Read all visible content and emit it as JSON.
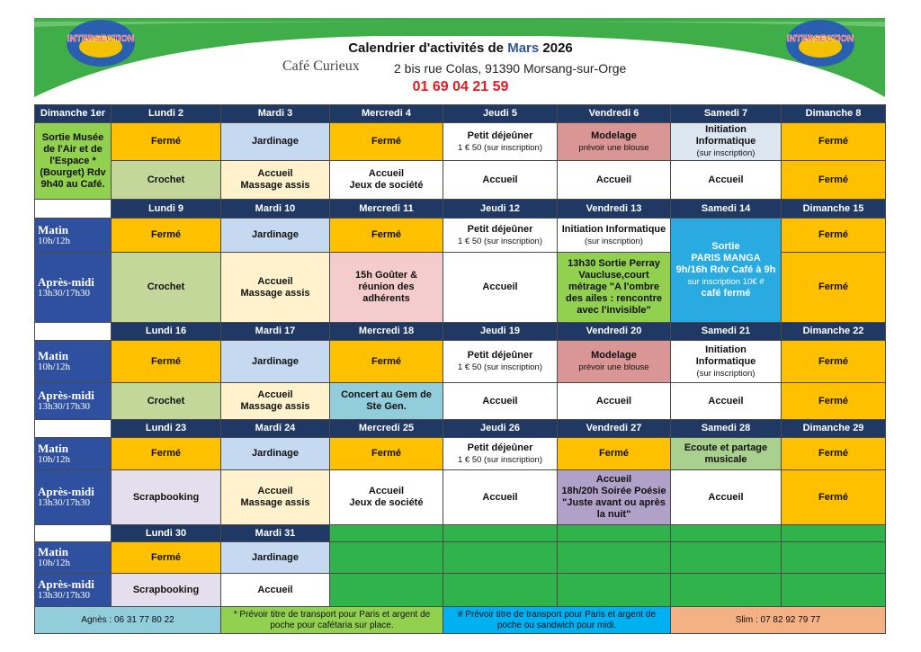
{
  "header": {
    "logo_text": "INTERSECTION",
    "title": [
      "Calendrier d'activités de",
      "Mars",
      "2026"
    ],
    "venue": "Café Curieux",
    "address": "2 bis rue Colas, 91390 Morsang-sur-Orge",
    "phone": "01 69 04 21 59"
  },
  "slots": [
    {
      "label": "Matin",
      "hours": "10h/12h"
    },
    {
      "label": "Après-midi",
      "hours": "13h30/17h30"
    }
  ],
  "weeks": [
    {
      "days": [
        "Dimanche 1er",
        "Lundi 2",
        "Mardi 3",
        "Mercredi 4",
        "Jeudi 5",
        "Vendredi 6",
        "Samedi 7",
        "Dimanche 8"
      ],
      "side_cell": {
        "lines": [
          "Sortie Musée de l'Air et de l'Espace *",
          "(Bourget) Rdv 9h40 au Café."
        ],
        "bg": "#92d050"
      },
      "rows": [
        [
          {
            "lines": [
              "Fermé"
            ],
            "bg": "#ffc000"
          },
          {
            "lines": [
              "Jardinage"
            ],
            "bg": "#c5d9f1"
          },
          {
            "lines": [
              "Fermé"
            ],
            "bg": "#ffc000"
          },
          {
            "lines": [
              "Petit déjeûner",
              "1 € 50 (sur inscription)"
            ],
            "light": [
              1
            ],
            "bg": "#ffffff"
          },
          {
            "lines": [
              "Modelage",
              "prévoir une blouse"
            ],
            "light": [
              1
            ],
            "bg": "#da9694"
          },
          {
            "lines": [
              "Initiation",
              "Informatique",
              "(sur inscription)"
            ],
            "light": [
              2
            ],
            "bg": "#dce6f1"
          },
          {
            "lines": [
              "Fermé"
            ],
            "bg": "#ffc000"
          }
        ],
        [
          {
            "lines": [
              "Crochet"
            ],
            "bg": "#c4d79b"
          },
          {
            "lines": [
              "Accueil",
              "Massage assis"
            ],
            "bg": "#fff2cc"
          },
          {
            "lines": [
              "Accueil",
              "Jeux de société"
            ],
            "bg": "#ffffff"
          },
          {
            "lines": [
              "Accueil"
            ],
            "bg": "#ffffff"
          },
          {
            "lines": [
              "Accueil"
            ],
            "bg": "#ffffff"
          },
          {
            "lines": [
              "Accueil"
            ],
            "bg": "#ffffff"
          },
          {
            "lines": [
              "Fermé"
            ],
            "bg": "#ffc000"
          }
        ]
      ]
    },
    {
      "days": [
        "Lundi 9",
        "Mardi 10",
        "Mercredi 11",
        "Jeudi 12",
        "Vendredi 13",
        "Samedi 14",
        "Dimanche 15"
      ],
      "rows": [
        [
          {
            "lines": [
              "Fermé"
            ],
            "bg": "#ffc000"
          },
          {
            "lines": [
              "Jardinage"
            ],
            "bg": "#c5d9f1"
          },
          {
            "lines": [
              "Fermé"
            ],
            "bg": "#ffc000"
          },
          {
            "lines": [
              "Petit déjeûner",
              "1 € 50 (sur inscription)"
            ],
            "light": [
              1
            ],
            "bg": "#ffffff"
          },
          {
            "lines": [
              "Initiation Informatique",
              "(sur inscription)"
            ],
            "light": [
              1
            ],
            "bg": "#ffffff"
          },
          {
            "lines": [
              "Sortie",
              "PARIS MANGA",
              "9h/16h Rdv Café à 9h",
              "sur inscription 10€ #",
              "café fermé"
            ],
            "light": [
              3
            ],
            "bg": "#29abe2",
            "fg": "#ffffff"
          },
          {
            "lines": [
              "Fermé"
            ],
            "bg": "#ffc000"
          }
        ],
        [
          {
            "lines": [
              "Crochet"
            ],
            "bg": "#c4d79b"
          },
          {
            "lines": [
              "Accueil",
              "Massage assis"
            ],
            "bg": "#fff2cc"
          },
          {
            "lines": [
              "15h  Goûter &",
              "réunion des",
              "adhérents"
            ],
            "bg": "#f4cccc"
          },
          {
            "lines": [
              "Accueil"
            ],
            "bg": "#ffffff"
          },
          {
            "lines": [
              "13h30 Sortie Perray",
              "Vaucluse,court",
              "métrage \"A l'ombre",
              "des ailes : rencontre",
              "avec l'invisible\""
            ],
            "bg": "#92d050"
          },
          null,
          {
            "lines": [
              "Fermé"
            ],
            "bg": "#ffc000"
          }
        ]
      ]
    },
    {
      "days": [
        "Lundi 16",
        "Mardi 17",
        "Mercredi 18",
        "Jeudi 19",
        "Vendredi 20",
        "Samedi 21",
        "Dimanche 22"
      ],
      "rows": [
        [
          {
            "lines": [
              "Fermé"
            ],
            "bg": "#ffc000"
          },
          {
            "lines": [
              "Jardinage"
            ],
            "bg": "#c5d9f1"
          },
          {
            "lines": [
              "Fermé"
            ],
            "bg": "#ffc000"
          },
          {
            "lines": [
              "Petit déjeûner",
              "1 € 50 (sur inscription)"
            ],
            "light": [
              1
            ],
            "bg": "#ffffff"
          },
          {
            "lines": [
              "Modelage",
              "prévoir une blouse"
            ],
            "light": [
              1
            ],
            "bg": "#da9694"
          },
          {
            "lines": [
              "Initiation",
              "Informatique",
              "(sur inscription)"
            ],
            "light": [
              2
            ],
            "bg": "#ffffff"
          },
          {
            "lines": [
              "Fermé"
            ],
            "bg": "#ffc000"
          }
        ],
        [
          {
            "lines": [
              "Crochet"
            ],
            "bg": "#c4d79b"
          },
          {
            "lines": [
              "Accueil",
              "Massage assis"
            ],
            "bg": "#fff2cc"
          },
          {
            "lines": [
              "Concert au Gem de",
              "Ste Gen."
            ],
            "bg": "#92cddc"
          },
          {
            "lines": [
              "Accueil"
            ],
            "bg": "#ffffff"
          },
          {
            "lines": [
              "Accueil"
            ],
            "bg": "#ffffff"
          },
          {
            "lines": [
              "Accueil"
            ],
            "bg": "#ffffff"
          },
          {
            "lines": [
              "Fermé"
            ],
            "bg": "#ffc000"
          }
        ]
      ]
    },
    {
      "days": [
        "Lundi 23",
        "Mardi 24",
        "Mercredi 25",
        "Jeudi 26",
        "Vendredi 27",
        "Samedi 28",
        "Dimanche 29"
      ],
      "rows": [
        [
          {
            "lines": [
              "Fermé"
            ],
            "bg": "#ffc000"
          },
          {
            "lines": [
              "Jardinage"
            ],
            "bg": "#c5d9f1"
          },
          {
            "lines": [
              "Fermé"
            ],
            "bg": "#ffc000"
          },
          {
            "lines": [
              "Petit déjeûner",
              "1 € 50 (sur inscription)"
            ],
            "light": [
              1
            ],
            "bg": "#ffffff"
          },
          {
            "lines": [
              "Fermé"
            ],
            "bg": "#ffc000"
          },
          {
            "lines": [
              "Ecoute et partage",
              "musicale"
            ],
            "bg": "#a9d08e"
          },
          {
            "lines": [
              "Fermé"
            ],
            "bg": "#ffc000"
          }
        ],
        [
          {
            "lines": [
              "Scrapbooking"
            ],
            "bg": "#e4dfec"
          },
          {
            "lines": [
              "Accueil",
              "Massage assis"
            ],
            "bg": "#fff2cc"
          },
          {
            "lines": [
              "Accueil",
              "Jeux de société"
            ],
            "bg": "#ffffff"
          },
          {
            "lines": [
              "Accueil"
            ],
            "bg": "#ffffff"
          },
          {
            "lines": [
              "Accueil",
              "18h/20h Soirée Poésie",
              "\"Juste avant ou après",
              "la nuit\""
            ],
            "bg": "#b1a0c7"
          },
          {
            "lines": [
              "Accueil"
            ],
            "bg": "#ffffff"
          },
          {
            "lines": [
              "Fermé"
            ],
            "bg": "#ffc000"
          }
        ]
      ]
    },
    {
      "days": [
        "Lundi 30",
        "Mardi 31"
      ],
      "rows": [
        [
          {
            "lines": [
              "Fermé"
            ],
            "bg": "#ffc000"
          },
          {
            "lines": [
              "Jardinage"
            ],
            "bg": "#c5d9f1"
          }
        ],
        [
          {
            "lines": [
              "Scrapbooking"
            ],
            "bg": "#e4dfec"
          },
          {
            "lines": [
              "Accueil"
            ],
            "bg": "#ffffff"
          }
        ]
      ]
    }
  ],
  "footer": [
    {
      "text": "Agnès : 06 31 77 80 22",
      "bg": "#92cddc"
    },
    {
      "text": "* Prévoir titre de transport pour Paris et argent de poche pour cafétaria sur place.",
      "bg": "#92d050"
    },
    {
      "text": "# Prévoir titre de transport pour Paris et argent de poche ou sandwich pour midi.",
      "bg": "#00b0f0"
    },
    {
      "text": "Slim : 07 82 92 79 77",
      "bg": "#f4b183"
    }
  ]
}
